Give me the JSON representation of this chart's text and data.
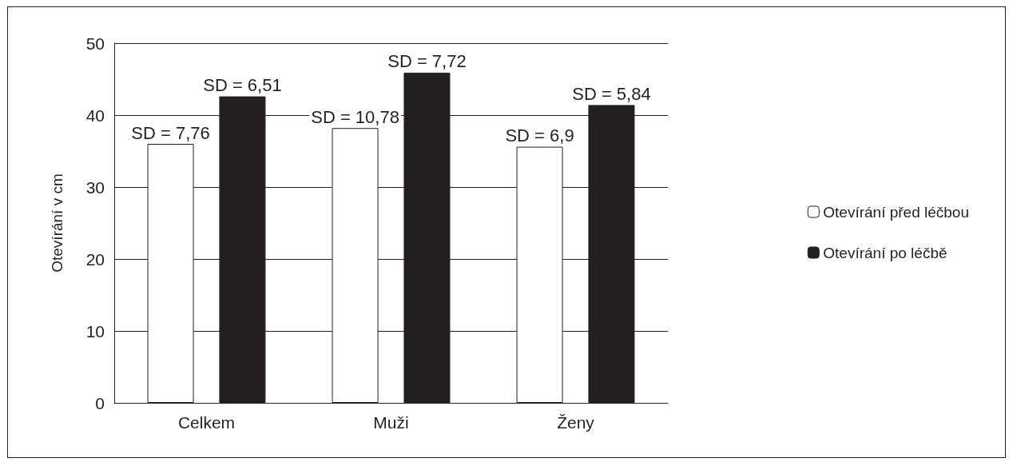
{
  "chart_data": {
    "type": "bar",
    "ylabel": "Otevírání v cm",
    "categories": [
      "Celkem",
      "Muži",
      "Ženy"
    ],
    "series": [
      {
        "name": "Otevírání před léčbou",
        "color": "#ffffff",
        "values": [
          36.0,
          38.2,
          35.6
        ]
      },
      {
        "name": "Otevírání po léčbě",
        "color": "#231f20",
        "values": [
          42.6,
          45.9,
          41.4
        ]
      }
    ],
    "annotations": [
      "SD = 7,76",
      "SD = 6,51",
      "SD = 10,78",
      "SD = 7,72",
      "SD = 6,9",
      "SD = 5,84"
    ],
    "ylim": [
      0,
      50
    ],
    "yticks": [
      0,
      10,
      20,
      30,
      40,
      50
    ],
    "grid": "y",
    "legend": "right"
  }
}
